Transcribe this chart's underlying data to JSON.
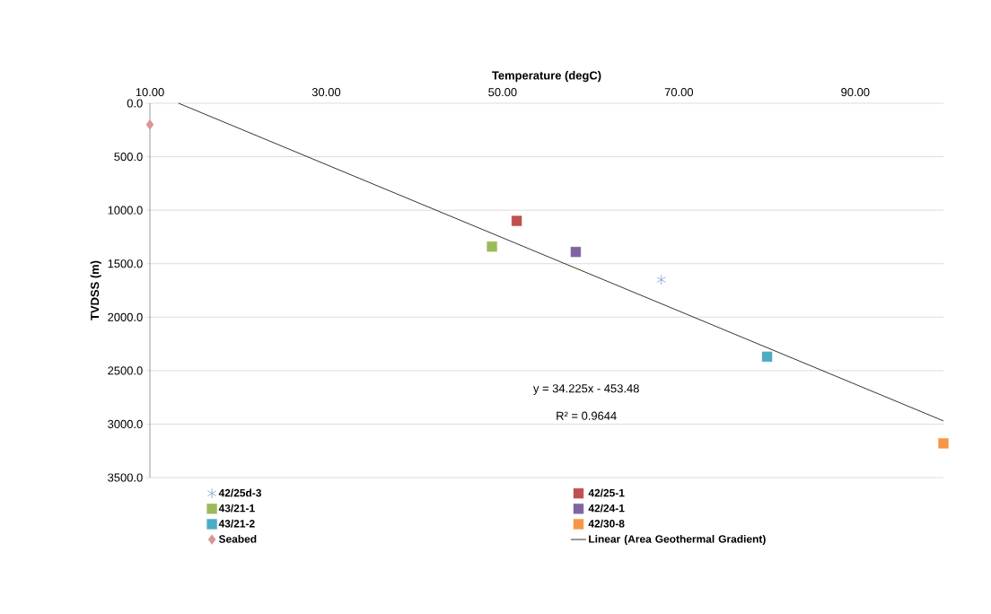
{
  "chart_data": {
    "type": "scatter",
    "xlabel": "Temperature (degC)",
    "ylabel": "TVDSS (m)",
    "xlim": [
      10,
      100
    ],
    "ylim": [
      3500,
      0
    ],
    "xticks": [
      {
        "value": 10,
        "label": "10.00"
      },
      {
        "value": 30,
        "label": "30.00"
      },
      {
        "value": 50,
        "label": "50.00"
      },
      {
        "value": 70,
        "label": "70.00"
      },
      {
        "value": 90,
        "label": "90.00"
      }
    ],
    "yticks": [
      {
        "value": 0,
        "label": "0.0"
      },
      {
        "value": 500,
        "label": "500.0"
      },
      {
        "value": 1000,
        "label": "1000.0"
      },
      {
        "value": 1500,
        "label": "1500.0"
      },
      {
        "value": 2000,
        "label": "2000.0"
      },
      {
        "value": 2500,
        "label": "2500.0"
      },
      {
        "value": 3000,
        "label": "3000.0"
      },
      {
        "value": 3500,
        "label": "3500.0"
      }
    ],
    "grid": "y",
    "legend": "bottom",
    "series": [
      {
        "name": "42/25d-3",
        "color": "#7f9fcf",
        "marker": "cross",
        "x": [
          68
        ],
        "values": [
          1650
        ]
      },
      {
        "name": "42/25-1",
        "color": "#c0504d",
        "marker": "square",
        "x": [
          51.6
        ],
        "values": [
          1100
        ]
      },
      {
        "name": "43/21-1",
        "color": "#9bbb59",
        "marker": "square",
        "x": [
          48.8
        ],
        "values": [
          1340
        ]
      },
      {
        "name": "42/24-1",
        "color": "#8064a2",
        "marker": "square",
        "x": [
          58.3
        ],
        "values": [
          1390
        ]
      },
      {
        "name": "43/21-2",
        "color": "#4bacc6",
        "marker": "square",
        "x": [
          80
        ],
        "values": [
          2370
        ]
      },
      {
        "name": "42/30-8",
        "color": "#f79646",
        "marker": "square",
        "x": [
          100
        ],
        "values": [
          3180
        ]
      },
      {
        "name": "Seabed",
        "color": "#d99694",
        "marker": "diamond",
        "x": [
          10
        ],
        "values": [
          200
        ]
      },
      {
        "name": "Linear (Area Geothermal Gradient)",
        "type": "line",
        "color": "#000000",
        "marker": "none",
        "x": [
          13.25,
          100
        ],
        "values": [
          0,
          2970
        ]
      }
    ],
    "annotations": [
      "y = 34.225x - 453.48",
      "R² = 0.9644"
    ]
  }
}
